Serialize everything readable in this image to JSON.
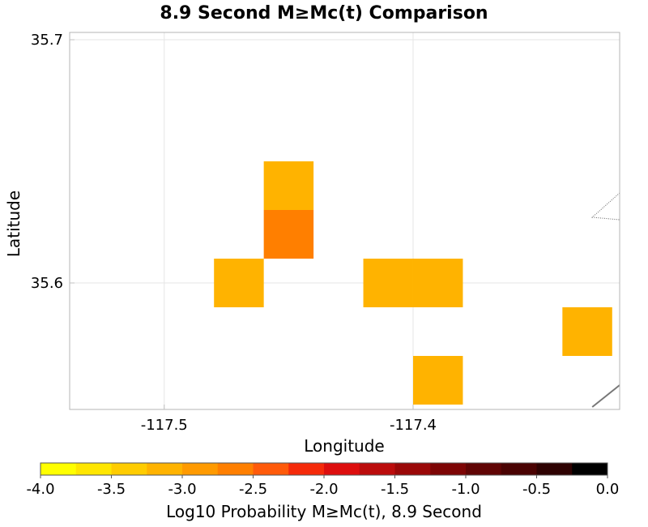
{
  "chart_data": {
    "type": "heatmap",
    "title": "8.9 Second M≥Mc(t) Comparison",
    "xlabel": "Longitude",
    "ylabel": "Latitude",
    "xlim": [
      -117.538,
      -117.317
    ],
    "ylim": [
      35.548,
      35.703
    ],
    "x_ticks": [
      -117.5,
      -117.4
    ],
    "x_tick_labels": [
      "-117.5",
      "-117.4"
    ],
    "y_ticks": [
      35.6,
      35.7
    ],
    "y_tick_labels": [
      "35.6",
      "35.7"
    ],
    "grid": true,
    "cell_size": 0.02,
    "cells": [
      {
        "lon": -117.45,
        "lat": 35.64,
        "value": -3.1
      },
      {
        "lon": -117.45,
        "lat": 35.62,
        "value": -2.6
      },
      {
        "lon": -117.47,
        "lat": 35.6,
        "value": -3.1
      },
      {
        "lon": -117.41,
        "lat": 35.6,
        "value": -3.1
      },
      {
        "lon": -117.39,
        "lat": 35.6,
        "value": -3.1
      },
      {
        "lon": -117.33,
        "lat": 35.58,
        "value": -3.1
      },
      {
        "lon": -117.39,
        "lat": 35.56,
        "value": -3.1
      }
    ],
    "fault_lines": [
      [
        [
          -117.328,
          35.549
        ],
        [
          -117.317,
          35.558
        ]
      ],
      [
        [
          -117.317,
          35.637
        ],
        [
          -117.328,
          35.627
        ],
        [
          -117.317,
          35.626
        ]
      ]
    ],
    "colorbar": {
      "label": "Log10 Probability M≥Mc(t), 8.9 Second",
      "min": -4.0,
      "max": 0.0,
      "tick_labels": [
        "-4.0",
        "-3.5",
        "-3.0",
        "-2.5",
        "-2.0",
        "-1.5",
        "-1.0",
        "-0.5",
        "0.0"
      ],
      "colors": [
        "#ffff00",
        "#ffe600",
        "#ffcc00",
        "#ffb300",
        "#ff9a00",
        "#ff7f00",
        "#ff5a0a",
        "#f52a0a",
        "#dd0e0e",
        "#bb0c0c",
        "#9a0808",
        "#7d0505",
        "#600404",
        "#4a0303",
        "#2e0202",
        "#000000"
      ]
    }
  }
}
